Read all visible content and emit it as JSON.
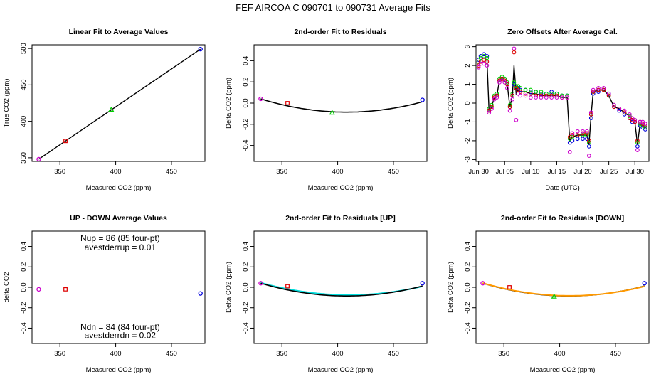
{
  "suptitle": "FEF   AIRCOA C   090701 to 090731   Average Fits",
  "colors": {
    "black": "#000000",
    "red": "#dd0000",
    "green": "#00cc00",
    "blue": "#0000dd",
    "magenta": "#cc00cc",
    "cyan": "#00dddd",
    "orange": "#ff9900"
  },
  "chart_data": [
    {
      "id": "p1",
      "type": "scatter",
      "title": "Linear Fit to Average Values",
      "xlabel": "Measured CO2 (ppm)",
      "ylabel": "True CO2 (ppm)",
      "xlim": [
        325,
        480
      ],
      "ylim": [
        345,
        505
      ],
      "xticks": [
        350,
        400,
        450
      ],
      "yticks": [
        350,
        400,
        450,
        500
      ],
      "points": [
        {
          "x": 331,
          "y": 348,
          "color": "magenta"
        },
        {
          "x": 355,
          "y": 373,
          "color": "red"
        },
        {
          "x": 396,
          "y": 416,
          "color": "green"
        },
        {
          "x": 476,
          "y": 499,
          "color": "blue"
        }
      ],
      "lines": [
        {
          "color": "black",
          "x": [
            331,
            476
          ],
          "y": [
            348,
            499
          ]
        }
      ]
    },
    {
      "id": "p2",
      "type": "scatter",
      "title": "2nd-order Fit to Residuals",
      "xlabel": "Measured CO2 (ppm)",
      "ylabel": "Delta CO2 (ppm)",
      "xlim": [
        325,
        480
      ],
      "ylim": [
        -0.55,
        0.55
      ],
      "xticks": [
        350,
        400,
        450
      ],
      "yticks": [
        -0.4,
        -0.2,
        0.0,
        0.2,
        0.4
      ],
      "yticklabels": [
        "-0.4",
        "-0.2",
        "0.0",
        "0.2",
        "0.4"
      ],
      "points": [
        {
          "x": 331,
          "y": 0.04,
          "color": "magenta"
        },
        {
          "x": 355,
          "y": 0.0,
          "color": "red"
        },
        {
          "x": 395,
          "y": -0.09,
          "color": "green"
        },
        {
          "x": 476,
          "y": 0.03,
          "color": "blue"
        }
      ],
      "curves": [
        {
          "color": "black",
          "xmin": 331,
          "xmax": 476,
          "vx": 408,
          "vy": -0.085,
          "x0": 331,
          "y0": 0.04
        }
      ]
    },
    {
      "id": "p3",
      "type": "line",
      "title": "Zero Offsets After Average Cal.",
      "xlabel": "Date (UTC)",
      "ylabel": "Delta CO2 (ppm)",
      "xlim": [
        -0.5,
        32.7
      ],
      "ylim": [
        -3.1,
        3.1
      ],
      "xticks": [
        0,
        5,
        10,
        15,
        20,
        25,
        30
      ],
      "xticklabels": [
        "Jun 30",
        "Jul 05",
        "Jul 10",
        "Jul 15",
        "Jul 20",
        "Jul 25",
        "Jul 30"
      ],
      "yticks": [
        -3,
        -2,
        -1,
        0,
        1,
        2,
        3
      ],
      "yticklabels": [
        "-3",
        "-2",
        "-1",
        "0",
        "1",
        "2",
        "3"
      ],
      "series": [
        {
          "name": "blue",
          "color": "blue",
          "x": [
            0.0,
            0.4,
            1.0,
            1.6,
            2.0,
            2.5,
            3.0,
            3.5,
            4.0,
            4.5,
            5.0,
            5.5,
            6.0,
            6.5,
            6.8,
            7.2,
            7.6,
            8.0,
            9.0,
            10.0,
            11.0,
            12.0,
            13.0,
            14.0,
            15.0,
            16.0,
            17.0,
            17.5,
            18.0,
            19.0,
            20.0,
            20.8,
            21.2,
            21.6,
            22.0,
            23.0,
            24.0,
            25.0,
            26.0,
            27.0,
            28.0,
            29.0,
            29.5,
            30.0,
            30.5,
            31.0,
            31.5,
            32.0
          ],
          "y": [
            2.3,
            2.5,
            2.6,
            2.5,
            -0.4,
            -0.2,
            0.3,
            0.4,
            1.2,
            1.3,
            1.2,
            1.0,
            -0.2,
            0.4,
            1.0,
            0.8,
            0.8,
            0.7,
            0.7,
            0.6,
            0.6,
            0.5,
            0.5,
            0.6,
            0.5,
            0.4,
            0.4,
            -2.1,
            -2.0,
            -1.9,
            -1.9,
            -1.9,
            -2.3,
            -0.8,
            0.5,
            0.6,
            0.7,
            0.5,
            -0.2,
            -0.4,
            -0.6,
            -0.8,
            -1.0,
            -1.0,
            -2.3,
            -1.2,
            -1.3,
            -1.4
          ]
        },
        {
          "name": "green",
          "color": "green",
          "x": [
            0.0,
            0.4,
            1.0,
            1.6,
            2.0,
            2.5,
            3.0,
            3.5,
            4.0,
            4.5,
            5.0,
            5.5,
            6.0,
            6.5,
            6.8,
            7.2,
            7.6,
            8.0,
            9.0,
            10.0,
            11.0,
            12.0,
            13.0,
            14.0,
            15.0,
            16.0,
            17.0,
            17.5,
            18.0,
            19.0,
            20.0,
            20.8,
            21.2,
            21.6,
            22.0,
            23.0,
            24.0,
            25.0,
            26.0,
            27.0,
            28.0,
            29.0,
            29.5,
            30.0,
            30.5,
            31.0,
            31.5,
            32.0
          ],
          "y": [
            2.2,
            2.4,
            2.5,
            2.4,
            -0.3,
            -0.1,
            0.4,
            0.5,
            1.3,
            1.4,
            1.3,
            1.1,
            -0.1,
            0.5,
            1.1,
            0.9,
            0.9,
            0.8,
            0.7,
            0.7,
            0.6,
            0.6,
            0.5,
            0.5,
            0.5,
            0.4,
            0.4,
            -1.9,
            -1.8,
            -1.7,
            -1.7,
            -1.7,
            -2.1,
            -0.6,
            0.6,
            0.7,
            0.7,
            0.4,
            -0.1,
            -0.3,
            -0.5,
            -0.7,
            -0.9,
            -0.9,
            -2.1,
            -1.1,
            -1.2,
            -1.3
          ]
        },
        {
          "name": "red",
          "color": "red",
          "x": [
            0.0,
            0.4,
            1.0,
            1.6,
            2.0,
            2.5,
            3.0,
            3.5,
            4.0,
            4.5,
            5.0,
            5.5,
            6.0,
            6.5,
            6.8,
            7.2,
            7.6,
            8.0,
            9.0,
            10.0,
            11.0,
            12.0,
            13.0,
            14.0,
            15.0,
            16.0,
            17.0,
            17.5,
            18.0,
            19.0,
            20.0,
            20.8,
            21.2,
            21.6,
            22.0,
            23.0,
            24.0,
            25.0,
            26.0,
            27.0,
            28.0,
            29.0,
            29.5,
            30.0,
            30.5,
            31.0,
            31.5,
            32.0
          ],
          "y": [
            2.0,
            2.2,
            2.3,
            2.2,
            -0.4,
            -0.2,
            0.3,
            0.4,
            1.2,
            1.3,
            1.2,
            1.0,
            -0.2,
            0.4,
            2.7,
            0.8,
            0.7,
            0.6,
            0.5,
            0.5,
            0.4,
            0.4,
            0.4,
            0.4,
            0.4,
            0.3,
            0.3,
            -1.8,
            -1.7,
            -1.7,
            -1.6,
            -1.6,
            -2.0,
            -0.6,
            0.6,
            0.7,
            0.7,
            0.4,
            -0.2,
            -0.3,
            -0.5,
            -0.8,
            -0.9,
            -1.0,
            -2.0,
            -1.0,
            -1.1,
            -1.2
          ]
        },
        {
          "name": "magenta",
          "color": "magenta",
          "x": [
            0.0,
            0.4,
            1.0,
            1.6,
            2.0,
            2.5,
            3.0,
            3.5,
            4.0,
            4.5,
            5.0,
            5.5,
            6.0,
            6.5,
            6.8,
            7.2,
            7.6,
            8.0,
            9.0,
            10.0,
            11.0,
            12.0,
            13.0,
            14.0,
            15.0,
            16.0,
            17.0,
            17.5,
            18.0,
            19.0,
            20.0,
            20.8,
            21.2,
            21.6,
            22.0,
            23.0,
            24.0,
            25.0,
            26.0,
            27.0,
            28.0,
            29.0,
            29.5,
            30.0,
            30.5,
            31.0,
            31.5,
            32.0
          ],
          "y": [
            1.9,
            2.1,
            2.1,
            2.0,
            -0.5,
            -0.3,
            0.2,
            0.3,
            1.1,
            1.2,
            1.1,
            0.8,
            -0.4,
            0.2,
            2.9,
            -0.9,
            0.5,
            0.4,
            0.4,
            0.3,
            0.3,
            0.3,
            0.3,
            0.3,
            0.3,
            0.3,
            0.3,
            -2.6,
            -1.6,
            -1.5,
            -1.5,
            -1.5,
            -2.8,
            -0.5,
            0.7,
            0.8,
            0.8,
            0.5,
            -0.1,
            -0.3,
            -0.4,
            -0.6,
            -0.8,
            -0.9,
            -2.5,
            -1.0,
            -1.0,
            -1.1
          ]
        }
      ],
      "lines": [
        {
          "color": "black",
          "x": [
            0.0,
            0.4,
            1.0,
            1.6,
            2.0,
            2.5,
            3.0,
            3.5,
            4.0,
            4.5,
            5.0,
            5.5,
            6.0,
            6.5,
            6.8,
            7.2,
            7.6,
            8.0,
            9.0,
            10.0,
            11.0,
            12.0,
            13.0,
            14.0,
            15.0,
            16.0,
            17.0,
            17.5,
            18.0,
            19.0,
            20.0,
            20.8,
            21.2,
            21.6,
            22.0,
            23.0,
            24.0,
            25.0,
            26.0,
            27.0,
            28.0,
            29.0,
            29.5,
            30.0,
            30.5,
            31.0,
            31.5,
            32.0
          ],
          "y": [
            2.1,
            2.3,
            2.4,
            2.3,
            -0.4,
            -0.2,
            0.3,
            0.4,
            1.2,
            1.3,
            1.2,
            1.0,
            -0.2,
            0.4,
            2.0,
            0.5,
            0.7,
            0.6,
            0.6,
            0.5,
            0.5,
            0.4,
            0.4,
            0.4,
            0.4,
            0.3,
            0.3,
            -2.0,
            -1.8,
            -1.7,
            -1.7,
            -1.7,
            -2.2,
            -0.6,
            0.6,
            0.7,
            0.7,
            0.4,
            -0.2,
            -0.3,
            -0.5,
            -0.7,
            -0.9,
            -1.0,
            -2.2,
            -1.1,
            -1.2,
            -1.2
          ]
        }
      ]
    },
    {
      "id": "p4",
      "type": "scatter",
      "title": "UP - DOWN Average Values",
      "xlabel": "Measured CO2 (ppm)",
      "ylabel": "delta CO2",
      "xlim": [
        325,
        480
      ],
      "ylim": [
        -0.55,
        0.55
      ],
      "xticks": [
        350,
        400,
        450
      ],
      "yticks": [
        -0.4,
        -0.2,
        0.0,
        0.2,
        0.4
      ],
      "yticklabels": [
        "-0.4",
        "-0.2",
        "0.0",
        "0.2",
        "0.4"
      ],
      "points": [
        {
          "x": 331,
          "y": -0.02,
          "color": "magenta"
        },
        {
          "x": 355,
          "y": -0.02,
          "color": "red"
        },
        {
          "x": 476,
          "y": -0.06,
          "color": "blue"
        }
      ],
      "annotations": [
        {
          "text": "Nup = 86 (85 four-pt)",
          "x": 404,
          "y": 0.48
        },
        {
          "text": "avestderrup =  0.01",
          "x": 404,
          "y": 0.39
        },
        {
          "text": "Ndn = 84 (84 four-pt)",
          "x": 404,
          "y": -0.39
        },
        {
          "text": "avestderrdn =  0.02",
          "x": 404,
          "y": -0.47
        }
      ]
    },
    {
      "id": "p5",
      "type": "scatter",
      "title": "2nd-order Fit to Residuals [UP]",
      "xlabel": "Measured CO2 (ppm)",
      "ylabel": "Delta CO2 (ppm)",
      "xlim": [
        325,
        480
      ],
      "ylim": [
        -0.55,
        0.55
      ],
      "xticks": [
        350,
        400,
        450
      ],
      "yticks": [
        -0.4,
        -0.2,
        0.0,
        0.2,
        0.4
      ],
      "yticklabels": [
        "-0.4",
        "-0.2",
        "0.0",
        "0.2",
        "0.4"
      ],
      "points": [
        {
          "x": 331,
          "y": 0.04,
          "color": "magenta"
        },
        {
          "x": 355,
          "y": 0.01,
          "color": "red"
        },
        {
          "x": 476,
          "y": 0.04,
          "color": "blue"
        }
      ],
      "curves": [
        {
          "color": "cyan",
          "xmin": 331,
          "xmax": 476,
          "vx": 410,
          "vy": -0.075,
          "x0": 331,
          "y0": 0.045
        },
        {
          "color": "black",
          "xmin": 331,
          "xmax": 476,
          "vx": 408,
          "vy": -0.085,
          "x0": 331,
          "y0": 0.04
        }
      ]
    },
    {
      "id": "p6",
      "type": "scatter",
      "title": "2nd-order Fit to Residuals [DOWN]",
      "xlabel": "Measured CO2 (ppm)",
      "ylabel": "Delta CO2 (ppm)",
      "xlim": [
        325,
        480
      ],
      "ylim": [
        -0.55,
        0.55
      ],
      "xticks": [
        350,
        400,
        450
      ],
      "yticks": [
        -0.4,
        -0.2,
        0.0,
        0.2,
        0.4
      ],
      "yticklabels": [
        "-0.4",
        "-0.2",
        "0.0",
        "0.2",
        "0.4"
      ],
      "points": [
        {
          "x": 331,
          "y": 0.04,
          "color": "magenta"
        },
        {
          "x": 355,
          "y": 0.0,
          "color": "red"
        },
        {
          "x": 395,
          "y": -0.09,
          "color": "green"
        },
        {
          "x": 476,
          "y": 0.04,
          "color": "blue"
        }
      ],
      "curves": [
        {
          "color": "black",
          "xmin": 331,
          "xmax": 476,
          "vx": 408,
          "vy": -0.085,
          "x0": 331,
          "y0": 0.04
        },
        {
          "color": "orange",
          "xmin": 331,
          "xmax": 476,
          "vx": 409,
          "vy": -0.083,
          "x0": 331,
          "y0": 0.042
        }
      ]
    }
  ]
}
